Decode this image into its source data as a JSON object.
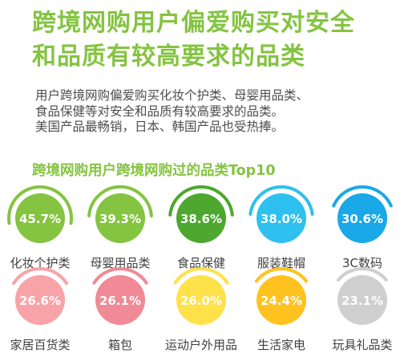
{
  "heading": {
    "title_lines": [
      "跨境网购用户偏爱购买对安全",
      "和品质有较高要求的品类"
    ],
    "description_lines": [
      "用户跨境网购偏爱购买化妆个护类、母婴用品类、",
      "食品保健等对安全和品质有较高要求的品类。",
      "美国产品最畅销，日本、韩国产品也受热捧。"
    ],
    "chart_title": "跨境网购用户跨境网购过的品类Top10"
  },
  "chart_data": {
    "type": "bar",
    "title": "跨境网购用户跨境网购过的品类Top10",
    "categories": [
      "化妆个护类",
      "母婴用品类",
      "食品保健",
      "服装鞋帽",
      "3C数码",
      "家居百货类",
      "箱包",
      "运动户外用品",
      "生活家电",
      "玩具礼品类"
    ],
    "values": [
      45.7,
      39.3,
      38.6,
      38.0,
      30.6,
      26.6,
      26.1,
      26.0,
      24.4,
      23.1
    ],
    "labels": [
      "45.7%",
      "39.3%",
      "38.6%",
      "38.0%",
      "30.6%",
      "26.6%",
      "26.1%",
      "26.0%",
      "24.4%",
      "23.1%"
    ],
    "unit": "%",
    "colors": [
      "#84c441",
      "#84c441",
      "#4ea72e",
      "#2ec0ef",
      "#1aa8e8",
      "#f8a3a8",
      "#f08a96",
      "#ffe14a",
      "#ffc21f",
      "#cfcfcf"
    ],
    "label_colors": [
      "#ffffff",
      "#ffffff",
      "#ffffff",
      "#ffffff",
      "#ffffff",
      "#ffffff",
      "#ffffff",
      "#ffffff",
      "#ffffff",
      "#ffffff"
    ],
    "category_color": "#404040"
  }
}
